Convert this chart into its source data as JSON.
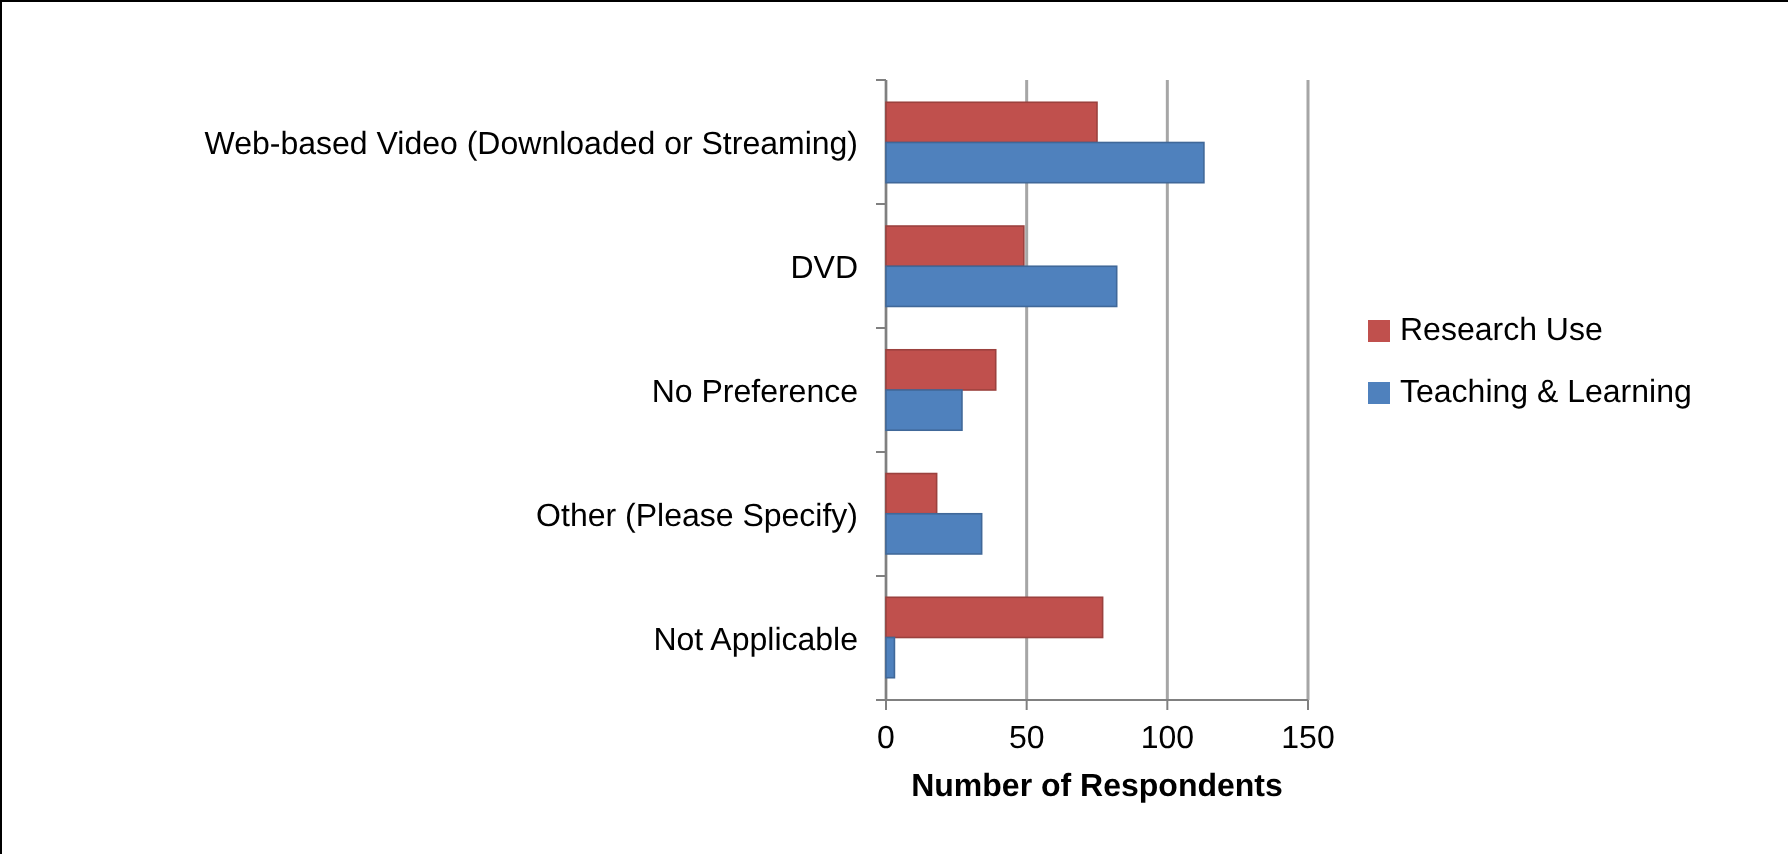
{
  "chart_data": {
    "type": "bar",
    "orientation": "horizontal",
    "xlabel": "Number of Respondents",
    "categories": [
      "Web-based Video (Downloaded or Streaming)",
      "DVD",
      "No Preference",
      "Other (Please Specify)",
      "Not Applicable"
    ],
    "series": [
      {
        "name": "Research Use",
        "color": "#c0504d",
        "values": [
          75,
          49,
          39,
          18,
          77
        ]
      },
      {
        "name": "Teaching & Learning",
        "color": "#4f81bd",
        "values": [
          113,
          82,
          27,
          34,
          3
        ]
      }
    ],
    "xlim": [
      0,
      150
    ],
    "xticks": [
      0,
      50,
      100,
      150
    ],
    "grid": "x",
    "legend": "right"
  }
}
